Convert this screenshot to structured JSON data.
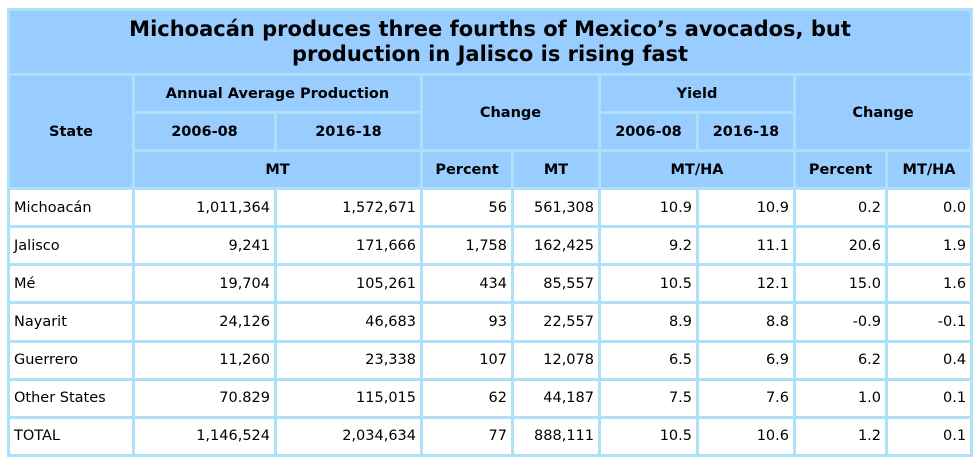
{
  "title": "Michoacán produces three fourths of Mexico’s avocados, but production in Jalisco is rising fast",
  "headers": {
    "state": "State",
    "annual_avg_production": "Annual Average Production",
    "change": "Change",
    "yield": "Yield",
    "yield_change": "Change",
    "period_1": "2006-08",
    "period_2": "2016-18",
    "yield_period_1": "2006-08",
    "yield_period_2": "2016-18",
    "unit_mt": "MT",
    "change_percent": "Percent",
    "change_mt": "MT",
    "unit_mt_ha": "MT/HA",
    "yield_change_percent": "Percent",
    "yield_change_mt_ha": "MT/HA"
  },
  "rows": [
    {
      "state": "Michoacán",
      "prod_2006_08": "1,011,364",
      "prod_2016_18": "1,572,671",
      "change_pct": "56",
      "change_mt": "561,308",
      "yield_2006_08": "10.9",
      "yield_2016_18": "10.9",
      "yield_change_pct": "0.2",
      "yield_change_mt_ha": "0.0"
    },
    {
      "state": "Jalisco",
      "prod_2006_08": "9,241",
      "prod_2016_18": "171,666",
      "change_pct": "1,758",
      "change_mt": "162,425",
      "yield_2006_08": "9.2",
      "yield_2016_18": "11.1",
      "yield_change_pct": "20.6",
      "yield_change_mt_ha": "1.9"
    },
    {
      "state": "Mé",
      "prod_2006_08": "19,704",
      "prod_2016_18": "105,261",
      "change_pct": "434",
      "change_mt": "85,557",
      "yield_2006_08": "10.5",
      "yield_2016_18": "12.1",
      "yield_change_pct": "15.0",
      "yield_change_mt_ha": "1.6"
    },
    {
      "state": "Nayarit",
      "prod_2006_08": "24,126",
      "prod_2016_18": "46,683",
      "change_pct": "93",
      "change_mt": "22,557",
      "yield_2006_08": "8.9",
      "yield_2016_18": "8.8",
      "yield_change_pct": "-0.9",
      "yield_change_mt_ha": "-0.1"
    },
    {
      "state": "Guerrero",
      "prod_2006_08": "11,260",
      "prod_2016_18": "23,338",
      "change_pct": "107",
      "change_mt": "12,078",
      "yield_2006_08": "6.5",
      "yield_2016_18": "6.9",
      "yield_change_pct": "6.2",
      "yield_change_mt_ha": "0.4"
    },
    {
      "state": "Other States",
      "prod_2006_08": "70.829",
      "prod_2016_18": "115,015",
      "change_pct": "62",
      "change_mt": "44,187",
      "yield_2006_08": "7.5",
      "yield_2016_18": "7.6",
      "yield_change_pct": "1.0",
      "yield_change_mt_ha": "0.1"
    },
    {
      "state": "TOTAL",
      "prod_2006_08": "1,146,524",
      "prod_2016_18": "2,034,634",
      "change_pct": "77",
      "change_mt": "888,111",
      "yield_2006_08": "10.5",
      "yield_2016_18": "10.6",
      "yield_change_pct": "1.2",
      "yield_change_mt_ha": "0.1"
    }
  ],
  "colors": {
    "header_fill": "#99ccff",
    "grid": "#aee0f8",
    "cell_fill": "#ffffff"
  }
}
